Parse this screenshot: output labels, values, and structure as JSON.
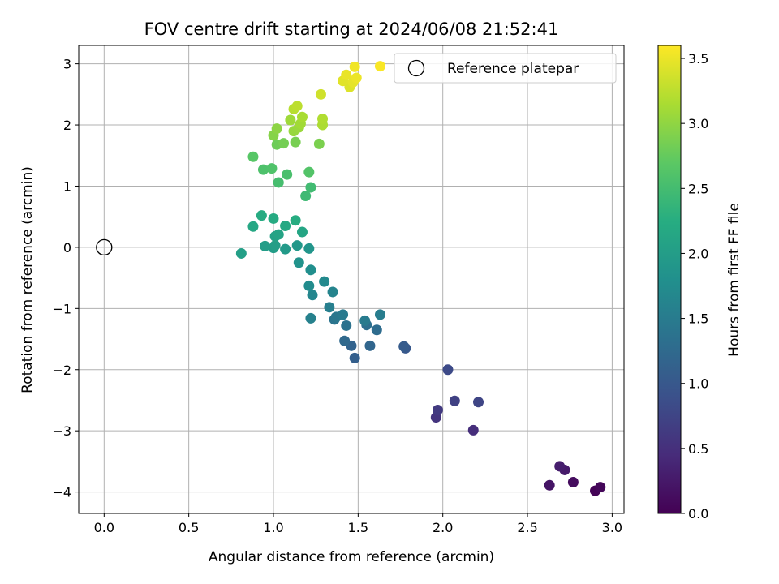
{
  "chart_data": {
    "type": "scatter",
    "title": "FOV centre drift starting at 2024/06/08 21:52:41",
    "xlabel": "Angular distance from reference (arcmin)",
    "ylabel": "Rotation from reference (arcmin)",
    "xlim": [
      -0.15,
      3.07
    ],
    "ylim": [
      -4.35,
      3.3
    ],
    "xticks": [
      0.0,
      0.5,
      1.0,
      1.5,
      2.0,
      2.5,
      3.0
    ],
    "xtick_labels": [
      "0.0",
      "0.5",
      "1.0",
      "1.5",
      "2.0",
      "2.5",
      "3.0"
    ],
    "yticks": [
      -4,
      -3,
      -2,
      -1,
      0,
      1,
      2,
      3
    ],
    "ytick_labels": [
      "−4",
      "−3",
      "−2",
      "−1",
      "0",
      "1",
      "2",
      "3"
    ],
    "grid": true,
    "legend": {
      "label": "Reference platepar",
      "placement": "upper right"
    },
    "reference_point": {
      "x": 0.0,
      "y": 0.0
    },
    "colorbar": {
      "label": "Hours from first FF file",
      "colormap": "viridis",
      "range": [
        0.0,
        3.6
      ],
      "ticks": [
        0.0,
        0.5,
        1.0,
        1.5,
        2.0,
        2.5,
        3.0,
        3.5
      ],
      "tick_labels": [
        "0.0",
        "0.5",
        "1.0",
        "1.5",
        "2.0",
        "2.5",
        "3.0",
        "3.5"
      ]
    },
    "points": [
      {
        "x": 2.9,
        "y": -3.98,
        "c": 0.02
      },
      {
        "x": 2.93,
        "y": -3.92,
        "c": 0.06
      },
      {
        "x": 2.77,
        "y": -3.84,
        "c": 0.12
      },
      {
        "x": 2.63,
        "y": -3.89,
        "c": 0.2
      },
      {
        "x": 2.72,
        "y": -3.64,
        "c": 0.26
      },
      {
        "x": 2.69,
        "y": -3.58,
        "c": 0.3
      },
      {
        "x": 2.18,
        "y": -2.99,
        "c": 0.48
      },
      {
        "x": 1.96,
        "y": -2.78,
        "c": 0.55
      },
      {
        "x": 1.97,
        "y": -2.66,
        "c": 0.62
      },
      {
        "x": 2.07,
        "y": -2.51,
        "c": 0.7
      },
      {
        "x": 2.21,
        "y": -2.53,
        "c": 0.75
      },
      {
        "x": 2.03,
        "y": -2.0,
        "c": 0.82
      },
      {
        "x": 1.78,
        "y": -1.65,
        "c": 1.0
      },
      {
        "x": 1.77,
        "y": -1.62,
        "c": 1.06
      },
      {
        "x": 1.48,
        "y": -1.81,
        "c": 1.1
      },
      {
        "x": 1.46,
        "y": -1.61,
        "c": 1.16
      },
      {
        "x": 1.57,
        "y": -1.61,
        "c": 1.2
      },
      {
        "x": 1.42,
        "y": -1.53,
        "c": 1.24
      },
      {
        "x": 1.61,
        "y": -1.35,
        "c": 1.28
      },
      {
        "x": 1.55,
        "y": -1.27,
        "c": 1.32
      },
      {
        "x": 1.43,
        "y": -1.28,
        "c": 1.36
      },
      {
        "x": 1.36,
        "y": -1.18,
        "c": 1.4
      },
      {
        "x": 1.37,
        "y": -1.14,
        "c": 1.44
      },
      {
        "x": 1.41,
        "y": -1.1,
        "c": 1.48
      },
      {
        "x": 1.54,
        "y": -1.2,
        "c": 1.5
      },
      {
        "x": 1.63,
        "y": -1.1,
        "c": 1.52
      },
      {
        "x": 1.33,
        "y": -0.98,
        "c": 1.56
      },
      {
        "x": 1.22,
        "y": -1.16,
        "c": 1.58
      },
      {
        "x": 1.35,
        "y": -0.73,
        "c": 1.62
      },
      {
        "x": 1.23,
        "y": -0.78,
        "c": 1.66
      },
      {
        "x": 1.3,
        "y": -0.56,
        "c": 1.7
      },
      {
        "x": 1.21,
        "y": -0.63,
        "c": 1.74
      },
      {
        "x": 1.22,
        "y": -0.37,
        "c": 1.78
      },
      {
        "x": 1.15,
        "y": -0.25,
        "c": 1.84
      },
      {
        "x": 1.21,
        "y": -0.02,
        "c": 1.88
      },
      {
        "x": 1.14,
        "y": 0.03,
        "c": 1.92
      },
      {
        "x": 1.07,
        "y": -0.03,
        "c": 1.95
      },
      {
        "x": 1.0,
        "y": -0.01,
        "c": 1.98
      },
      {
        "x": 0.95,
        "y": 0.02,
        "c": 2.0
      },
      {
        "x": 1.01,
        "y": 0.03,
        "c": 2.02
      },
      {
        "x": 0.81,
        "y": -0.1,
        "c": 2.04
      },
      {
        "x": 1.01,
        "y": 0.18,
        "c": 2.07
      },
      {
        "x": 1.03,
        "y": 0.21,
        "c": 2.1
      },
      {
        "x": 1.17,
        "y": 0.25,
        "c": 2.12
      },
      {
        "x": 0.88,
        "y": 0.34,
        "c": 2.15
      },
      {
        "x": 1.07,
        "y": 0.35,
        "c": 2.18
      },
      {
        "x": 1.0,
        "y": 0.47,
        "c": 2.2
      },
      {
        "x": 0.93,
        "y": 0.52,
        "c": 2.22
      },
      {
        "x": 1.13,
        "y": 0.44,
        "c": 2.24
      },
      {
        "x": 1.19,
        "y": 0.84,
        "c": 2.45
      },
      {
        "x": 1.22,
        "y": 0.98,
        "c": 2.48
      },
      {
        "x": 1.03,
        "y": 1.06,
        "c": 2.52
      },
      {
        "x": 1.08,
        "y": 1.19,
        "c": 2.55
      },
      {
        "x": 0.94,
        "y": 1.27,
        "c": 2.58
      },
      {
        "x": 0.99,
        "y": 1.29,
        "c": 2.6
      },
      {
        "x": 1.21,
        "y": 1.23,
        "c": 2.62
      },
      {
        "x": 0.88,
        "y": 1.48,
        "c": 2.66
      },
      {
        "x": 1.02,
        "y": 1.68,
        "c": 2.8
      },
      {
        "x": 1.06,
        "y": 1.7,
        "c": 2.84
      },
      {
        "x": 1.13,
        "y": 1.72,
        "c": 2.86
      },
      {
        "x": 1.27,
        "y": 1.69,
        "c": 2.88
      },
      {
        "x": 1.0,
        "y": 1.83,
        "c": 2.94
      },
      {
        "x": 1.02,
        "y": 1.94,
        "c": 2.98
      },
      {
        "x": 1.12,
        "y": 1.9,
        "c": 3.04
      },
      {
        "x": 1.15,
        "y": 1.96,
        "c": 3.06
      },
      {
        "x": 1.1,
        "y": 2.08,
        "c": 3.08
      },
      {
        "x": 1.16,
        "y": 2.02,
        "c": 3.1
      },
      {
        "x": 1.17,
        "y": 2.13,
        "c": 3.14
      },
      {
        "x": 1.29,
        "y": 2.0,
        "c": 3.16
      },
      {
        "x": 1.29,
        "y": 2.1,
        "c": 3.18
      },
      {
        "x": 1.12,
        "y": 2.26,
        "c": 3.22
      },
      {
        "x": 1.14,
        "y": 2.31,
        "c": 3.25
      },
      {
        "x": 1.28,
        "y": 2.5,
        "c": 3.35
      },
      {
        "x": 1.45,
        "y": 2.62,
        "c": 3.42
      },
      {
        "x": 1.41,
        "y": 2.72,
        "c": 3.45
      },
      {
        "x": 1.47,
        "y": 2.7,
        "c": 3.47
      },
      {
        "x": 1.43,
        "y": 2.82,
        "c": 3.49
      },
      {
        "x": 1.49,
        "y": 2.77,
        "c": 3.51
      },
      {
        "x": 1.48,
        "y": 2.95,
        "c": 3.53
      },
      {
        "x": 1.63,
        "y": 2.96,
        "c": 3.58
      }
    ]
  }
}
